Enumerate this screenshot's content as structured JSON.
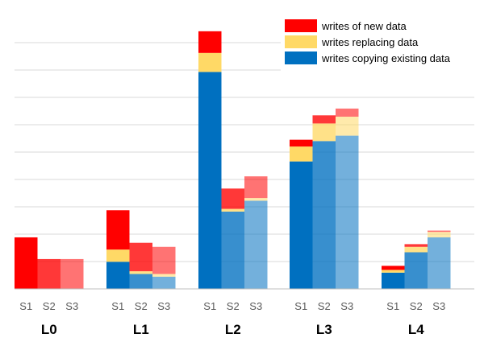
{
  "chart_data": {
    "type": "bar",
    "stacked": true,
    "title": "",
    "xlabel": "",
    "ylabel": "",
    "ylim": [
      0,
      100
    ],
    "grid": true,
    "legend_position": "top-right",
    "series": [
      {
        "name": "writes copying existing data",
        "key": "copy",
        "color": "#0070c0"
      },
      {
        "name": "writes replacing data",
        "key": "replace",
        "color": "#ffd966"
      },
      {
        "name": "writes of new data",
        "key": "new",
        "color": "#ff0000"
      }
    ],
    "groups": [
      {
        "label": "L0",
        "bars": [
          {
            "label": "S1",
            "opacity": 1.0,
            "copy": 0,
            "replace": 0,
            "new": 19
          },
          {
            "label": "S2",
            "opacity": 0.78,
            "copy": 0,
            "replace": 0,
            "new": 11
          },
          {
            "label": "S3",
            "opacity": 0.55,
            "copy": 0,
            "replace": 0,
            "new": 11
          }
        ]
      },
      {
        "label": "L1",
        "bars": [
          {
            "label": "S1",
            "opacity": 1.0,
            "copy": 10,
            "replace": 4.5,
            "new": 14.5
          },
          {
            "label": "S2",
            "opacity": 0.78,
            "copy": 5.5,
            "replace": 1,
            "new": 10.5
          },
          {
            "label": "S3",
            "opacity": 0.55,
            "copy": 4.5,
            "replace": 1,
            "new": 10
          }
        ]
      },
      {
        "label": "L2",
        "bars": [
          {
            "label": "S1",
            "opacity": 1.0,
            "copy": 80,
            "replace": 7,
            "new": 8
          },
          {
            "label": "S2",
            "opacity": 0.78,
            "copy": 28.5,
            "replace": 1,
            "new": 7.5
          },
          {
            "label": "S3",
            "opacity": 0.55,
            "copy": 32.5,
            "replace": 1,
            "new": 8
          }
        ]
      },
      {
        "label": "L3",
        "bars": [
          {
            "label": "S1",
            "opacity": 1.0,
            "copy": 47,
            "replace": 5.5,
            "new": 2.5
          },
          {
            "label": "S2",
            "opacity": 0.78,
            "copy": 54.5,
            "replace": 6.5,
            "new": 3
          },
          {
            "label": "S3",
            "opacity": 0.55,
            "copy": 56.5,
            "replace": 7,
            "new": 3
          }
        ]
      },
      {
        "label": "L4",
        "bars": [
          {
            "label": "S1",
            "opacity": 1.0,
            "copy": 6,
            "replace": 1,
            "new": 1.5
          },
          {
            "label": "S2",
            "opacity": 0.78,
            "copy": 13.5,
            "replace": 2,
            "new": 1
          },
          {
            "label": "S3",
            "opacity": 0.55,
            "copy": 19,
            "replace": 2,
            "new": 0.5
          }
        ]
      }
    ]
  }
}
